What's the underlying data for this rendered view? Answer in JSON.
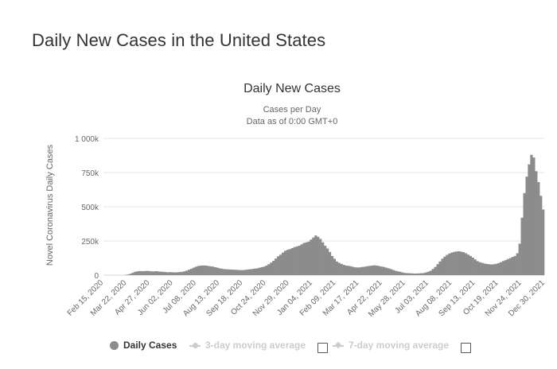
{
  "page": {
    "heading": "Daily New Cases in the United States"
  },
  "chart_data": {
    "type": "bar",
    "title": "Daily New Cases",
    "subtitle_line1": "Cases per Day",
    "subtitle_line2": "Data as of 0:00 GMT+0",
    "ylabel": "Novel Coronavirus Daily Cases",
    "xlabel": "",
    "ylim": [
      0,
      1000000
    ],
    "y_ticks": [
      {
        "value": 0,
        "label": "0"
      },
      {
        "value": 250000,
        "label": "250k"
      },
      {
        "value": 500000,
        "label": "500k"
      },
      {
        "value": 750000,
        "label": "750k"
      },
      {
        "value": 1000000,
        "label": "1 000k"
      }
    ],
    "x_tick_labels": [
      "Feb 15, 2020",
      "Mar 22, 2020",
      "Apr 27, 2020",
      "Jun 02, 2020",
      "Jul 08, 2020",
      "Aug 13, 2020",
      "Sep 18, 2020",
      "Oct 24, 2020",
      "Nov 29, 2020",
      "Jan 04, 2021",
      "Feb 09, 2021",
      "Mar 17, 2021",
      "Apr 22, 2021",
      "May 28, 2021",
      "Jul 03, 2021",
      "Aug 08, 2021",
      "Sep 13, 2021",
      "Oct 19, 2021",
      "Nov 24, 2021",
      "Dec 30, 2021"
    ],
    "series": [
      {
        "name": "Daily Cases",
        "color": "#8c8c8c",
        "note": "daily values sampled every 3 days starting Feb 15, 2020",
        "values": [
          0,
          0,
          0,
          0,
          0,
          0,
          0,
          0,
          0,
          2000,
          5000,
          10000,
          17000,
          25000,
          28000,
          30000,
          29000,
          30000,
          31000,
          30000,
          28000,
          27000,
          29000,
          27000,
          25000,
          24000,
          23000,
          21000,
          22000,
          21000,
          20000,
          21000,
          23000,
          24000,
          28000,
          33000,
          40000,
          47000,
          55000,
          62000,
          67000,
          70000,
          71000,
          70000,
          68000,
          65000,
          63000,
          58000,
          55000,
          50000,
          47000,
          44000,
          43000,
          42000,
          41000,
          40000,
          39000,
          38000,
          37000,
          37000,
          39000,
          41000,
          43000,
          45000,
          48000,
          50000,
          54000,
          58000,
          62000,
          70000,
          80000,
          92000,
          105000,
          122000,
          138000,
          150000,
          165000,
          178000,
          185000,
          190000,
          198000,
          205000,
          210000,
          215000,
          225000,
          235000,
          240000,
          245000,
          260000,
          275000,
          290000,
          280000,
          265000,
          240000,
          215000,
          195000,
          170000,
          140000,
          120000,
          100000,
          90000,
          82000,
          75000,
          70000,
          68000,
          65000,
          60000,
          57000,
          56000,
          57000,
          60000,
          62000,
          65000,
          68000,
          70000,
          72000,
          70000,
          67000,
          63000,
          60000,
          55000,
          50000,
          45000,
          38000,
          32000,
          28000,
          25000,
          20000,
          16000,
          15000,
          14000,
          13000,
          12000,
          12000,
          13000,
          14000,
          15000,
          20000,
          25000,
          32000,
          45000,
          60000,
          80000,
          100000,
          120000,
          135000,
          148000,
          158000,
          165000,
          170000,
          173000,
          175000,
          172000,
          168000,
          160000,
          150000,
          140000,
          128000,
          115000,
          102000,
          95000,
          90000,
          85000,
          82000,
          80000,
          78000,
          80000,
          83000,
          88000,
          95000,
          103000,
          110000,
          118000,
          125000,
          133000,
          140000,
          160000,
          230000,
          420000,
          600000,
          720000,
          810000,
          880000,
          860000,
          760000,
          680000,
          580000,
          480000
        ]
      }
    ],
    "legend": {
      "daily": "Daily Cases",
      "ma3": "3-day moving average",
      "ma7": "7-day moving average"
    },
    "colors": {
      "bars": "#8c8c8c",
      "grid": "#e6e6e6",
      "text": "#666666",
      "inactive": "#cccccc"
    }
  }
}
